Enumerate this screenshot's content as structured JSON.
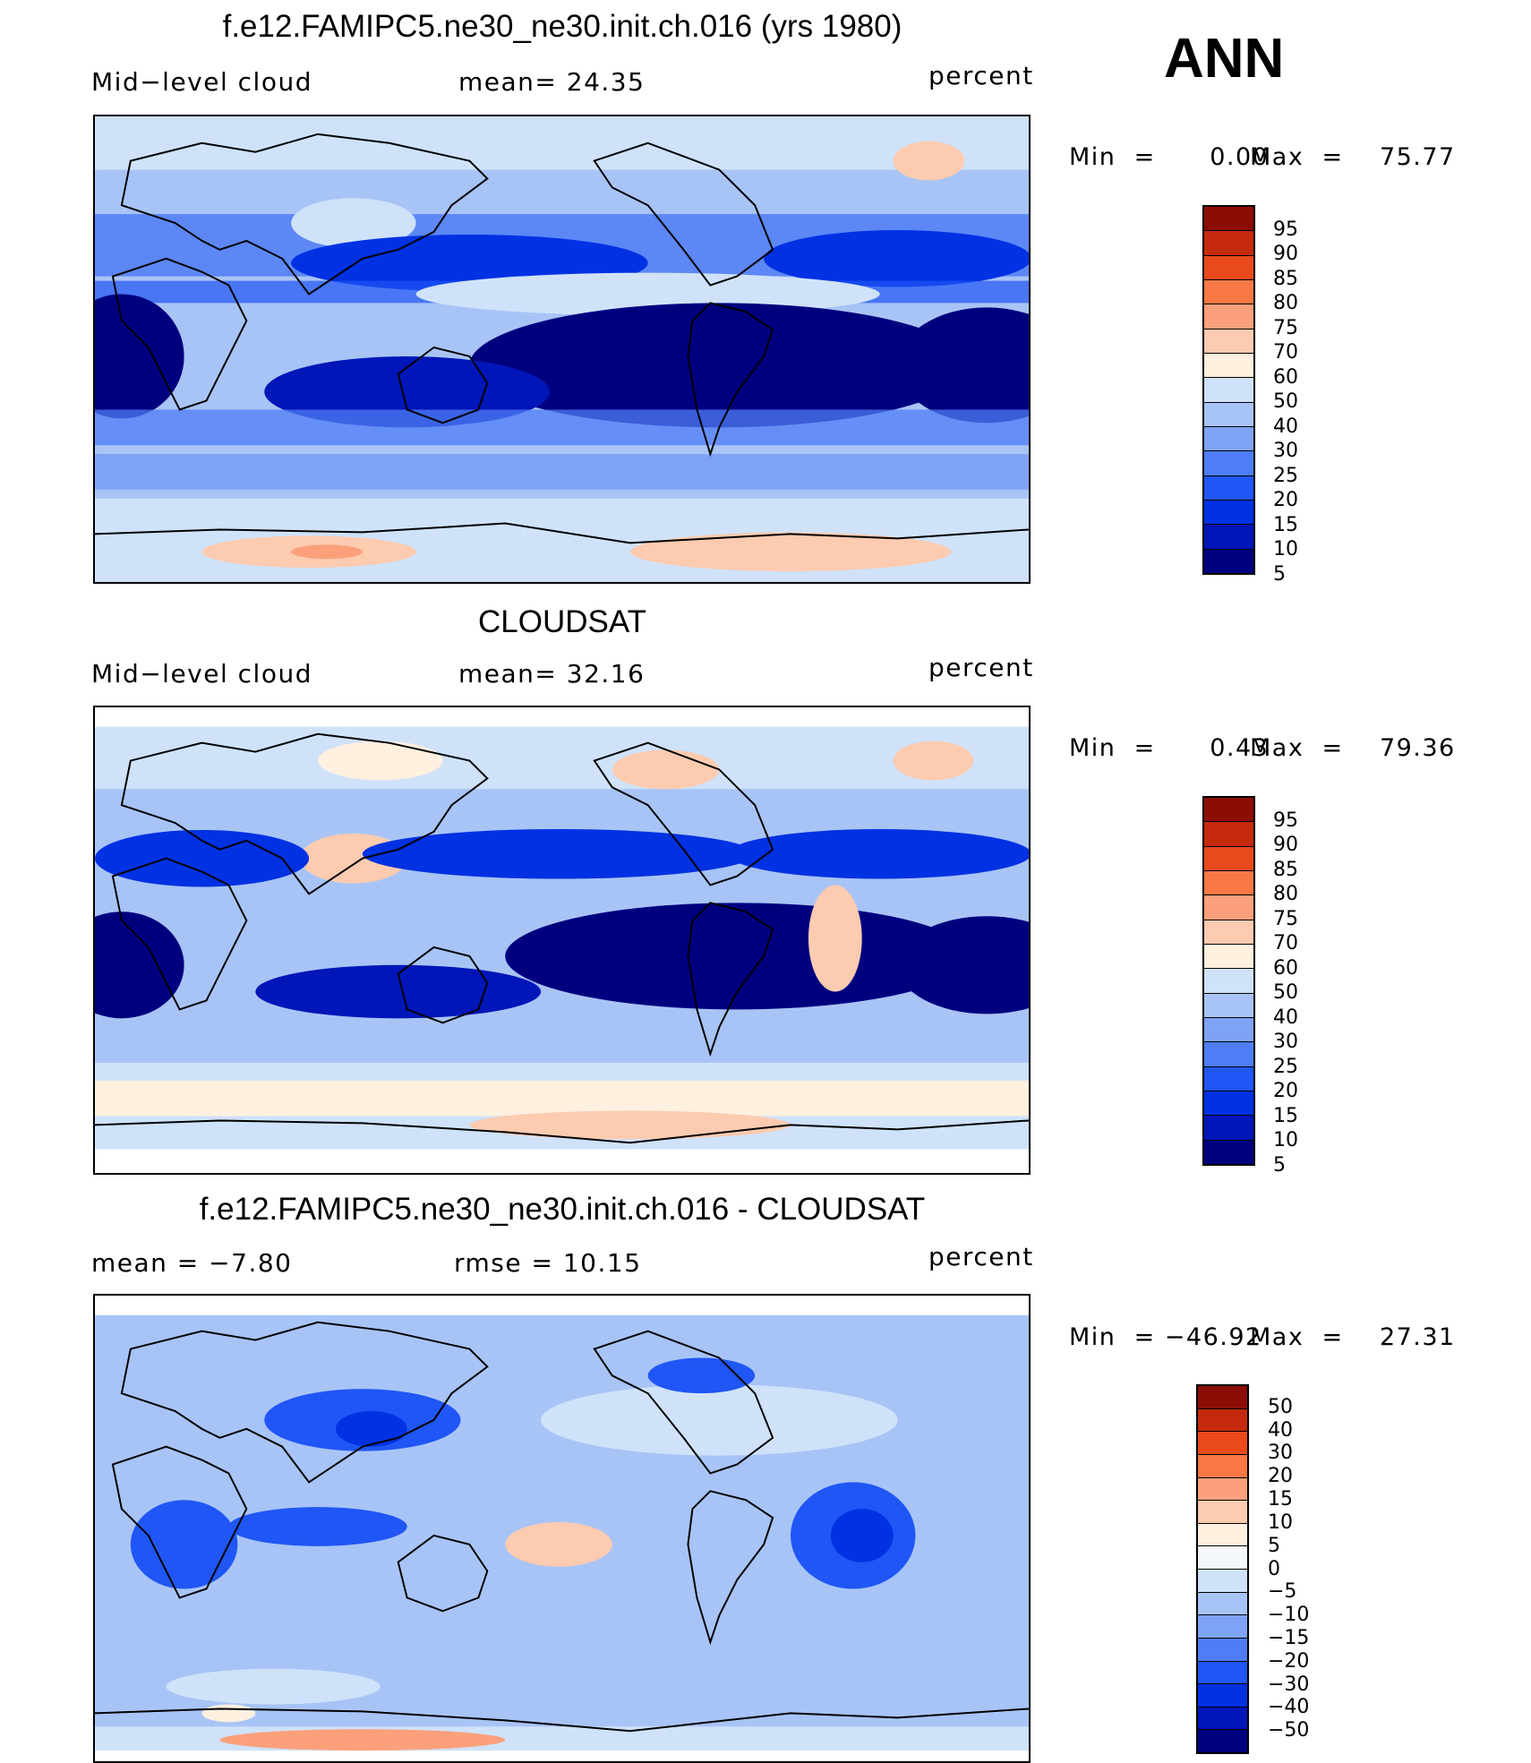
{
  "season": "ANN",
  "colors": {
    "abs_scale": [
      "#00007f",
      "#0016b8",
      "#0031e3",
      "#1f56f5",
      "#4f7df5",
      "#7fa3f4",
      "#a8c4f6",
      "#cfe2fa",
      "#fff0e0",
      "#fccbb0",
      "#fba07a",
      "#f77845",
      "#ea4a1b",
      "#c62a0c",
      "#8b0d05"
    ],
    "diff_scale": [
      "#00007f",
      "#0016b8",
      "#0031e3",
      "#1f56f5",
      "#4f7df5",
      "#7fa3f4",
      "#a8c4f6",
      "#cfe2fa",
      "#f4f8fd",
      "#fff0e0",
      "#fccbb0",
      "#fba07a",
      "#f77845",
      "#ea4a1b",
      "#c62a0c",
      "#8b0d05"
    ],
    "coast": "#000000"
  },
  "chart_data": [
    {
      "type": "heatmap",
      "title": "f.e12.FAMIPC5.ne30_ne30.init.ch.016 (yrs 1980)",
      "left_label": "Mid−level  cloud",
      "center_label": "mean=   24.35",
      "units": "percent",
      "min_label": "Min  =      0.00",
      "max_label": "Max  =    75.77",
      "colorbar_levels": [
        "95",
        "90",
        "85",
        "80",
        "75",
        "70",
        "60",
        "50",
        "40",
        "30",
        "25",
        "20",
        "15",
        "10",
        "5"
      ]
    },
    {
      "type": "heatmap",
      "title": "CLOUDSAT",
      "left_label": "Mid−level  cloud",
      "center_label": "mean=   32.16",
      "units": "percent",
      "min_label": "Min  =      0.43",
      "max_label": "Max  =    79.36",
      "colorbar_levels": [
        "95",
        "90",
        "85",
        "80",
        "75",
        "70",
        "60",
        "50",
        "40",
        "30",
        "25",
        "20",
        "15",
        "10",
        "5"
      ]
    },
    {
      "type": "heatmap",
      "title": "f.e12.FAMIPC5.ne30_ne30.init.ch.016 - CLOUDSAT",
      "left_label": "mean  =    −7.80",
      "center_label": "rmse  =    10.15",
      "units": "percent",
      "min_label": "Min  = −46.92",
      "max_label": "Max  =    27.31",
      "colorbar_levels": [
        "50",
        "40",
        "30",
        "20",
        "15",
        "10",
        "5",
        "0",
        "−5",
        "−10",
        "−15",
        "−20",
        "−30",
        "−40",
        "−50"
      ]
    }
  ]
}
